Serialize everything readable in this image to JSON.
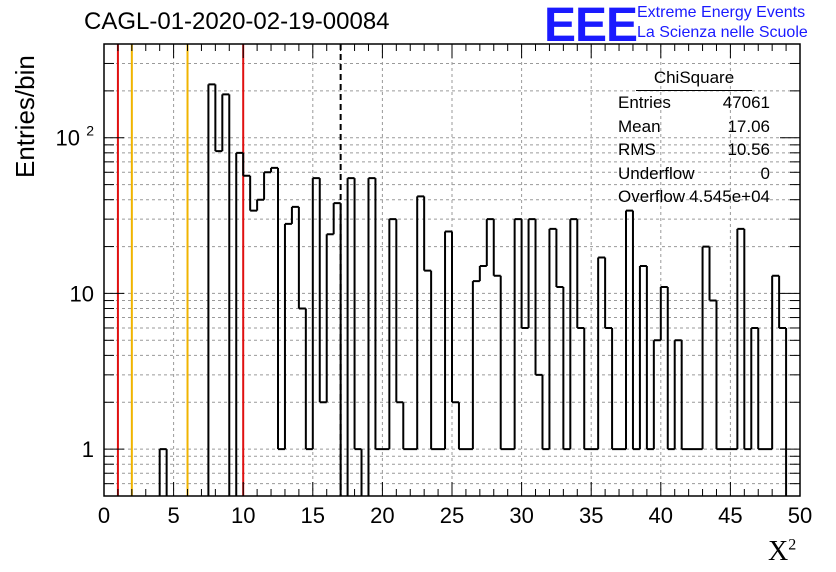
{
  "header": {
    "title": "CAGL-01-2020-02-19-00084",
    "logo": "EEE",
    "logo_line1": "Extreme Energy Events",
    "logo_line2": "La Scienza nelle Scuole"
  },
  "stats_box": {
    "name": "ChiSquare",
    "rows": [
      {
        "key": "Entries",
        "value": "47061"
      },
      {
        "key": "Mean",
        "value": "17.06"
      },
      {
        "key": "RMS",
        "value": "10.56"
      },
      {
        "key": "Underflow",
        "value": "0"
      },
      {
        "key": "Overflow",
        "value": "4.545e+04"
      }
    ]
  },
  "colors": {
    "red": "#e01010",
    "yellow": "#f0b400",
    "hist": "#000000",
    "grid": "#9a9a9a"
  },
  "chart_data": {
    "type": "histogram",
    "ylabel": "Entries/bin",
    "xlabel": "X",
    "xlabel_sup": "2",
    "xlim": [
      0,
      50
    ],
    "ylim": [
      0.5,
      400
    ],
    "yscale": "log",
    "grid": true,
    "xticks": [
      0,
      5,
      10,
      15,
      20,
      25,
      30,
      35,
      40,
      45,
      50
    ],
    "yticks": [
      {
        "value": 1,
        "label": "1"
      },
      {
        "value": 10,
        "label": "10"
      },
      {
        "value": 100,
        "label": "10",
        "exp": "2"
      }
    ],
    "bin_width": 0.5,
    "bins": [
      [
        4,
        1
      ],
      [
        7.5,
        220
      ],
      [
        8,
        82
      ],
      [
        8.5,
        190
      ],
      [
        9.5,
        80
      ],
      [
        10,
        57
      ],
      [
        10.5,
        34
      ],
      [
        11,
        40
      ],
      [
        11.5,
        60
      ],
      [
        12,
        64
      ],
      [
        12.5,
        1
      ],
      [
        13,
        28
      ],
      [
        13.5,
        36
      ],
      [
        14,
        8
      ],
      [
        14.5,
        1
      ],
      [
        15,
        55
      ],
      [
        15.5,
        2
      ],
      [
        16,
        24
      ],
      [
        16.5,
        38
      ],
      [
        17.5,
        55
      ],
      [
        18,
        1
      ],
      [
        19,
        55
      ],
      [
        19.5,
        1
      ],
      [
        20,
        1
      ],
      [
        20.5,
        30
      ],
      [
        21,
        2
      ],
      [
        21.5,
        1
      ],
      [
        22,
        1
      ],
      [
        22.5,
        42
      ],
      [
        23,
        14
      ],
      [
        23.5,
        1
      ],
      [
        24,
        1
      ],
      [
        24.5,
        25
      ],
      [
        25,
        2
      ],
      [
        25.5,
        1
      ],
      [
        26,
        1
      ],
      [
        26.5,
        12
      ],
      [
        27,
        15
      ],
      [
        27.5,
        30
      ],
      [
        28,
        13
      ],
      [
        28.5,
        1
      ],
      [
        29,
        1
      ],
      [
        29.5,
        30
      ],
      [
        30,
        6
      ],
      [
        30.5,
        30
      ],
      [
        31,
        3
      ],
      [
        31.5,
        1
      ],
      [
        32,
        26
      ],
      [
        32.5,
        11
      ],
      [
        33,
        1
      ],
      [
        33.5,
        30
      ],
      [
        34,
        6
      ],
      [
        34.5,
        1
      ],
      [
        35,
        1
      ],
      [
        35.5,
        17
      ],
      [
        36,
        6
      ],
      [
        36.5,
        1
      ],
      [
        37,
        1
      ],
      [
        37.5,
        34
      ],
      [
        38,
        1
      ],
      [
        38.5,
        15
      ],
      [
        39,
        1
      ],
      [
        39.5,
        5
      ],
      [
        40,
        11
      ],
      [
        40.5,
        1
      ],
      [
        41,
        5
      ],
      [
        41.5,
        1
      ],
      [
        42,
        1
      ],
      [
        42.5,
        1
      ],
      [
        43,
        20
      ],
      [
        43.5,
        9
      ],
      [
        44,
        1
      ],
      [
        44.5,
        1
      ],
      [
        45,
        1
      ],
      [
        45.5,
        26
      ],
      [
        46,
        1
      ],
      [
        46.5,
        6
      ],
      [
        47,
        1
      ],
      [
        47.5,
        1
      ],
      [
        48,
        13
      ],
      [
        48.5,
        6
      ]
    ],
    "vlines": [
      {
        "x": 1,
        "color": "red",
        "style": "solid"
      },
      {
        "x": 2,
        "color": "yellow",
        "style": "solid"
      },
      {
        "x": 6,
        "color": "yellow",
        "style": "solid"
      },
      {
        "x": 10,
        "color": "red",
        "style": "solid"
      },
      {
        "x": 17,
        "color": "black",
        "style": "dashed"
      }
    ]
  }
}
